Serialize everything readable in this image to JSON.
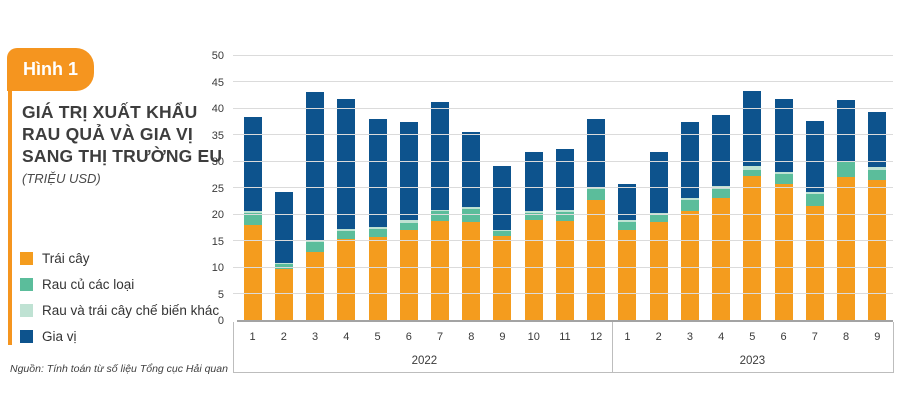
{
  "figure": {
    "label": "Hình 1",
    "title_lines": [
      "GIÁ TRỊ XUẤT KHẨU",
      "RAU QUẢ VÀ GIA VỊ",
      "SANG THỊ TRƯỜNG EU"
    ],
    "unit": "(TRIỆU USD)",
    "source": "Nguồn: Tính toán từ số liệu Tổng cục Hải quan"
  },
  "colors": {
    "accent_orange": "#F5951F",
    "series_fruit": "#F49C1E",
    "series_vegetables": "#5BBD9B",
    "series_processed": "#BFE2D3",
    "series_spices": "#0D538D",
    "gridline": "#DBDBDB",
    "axis_line": "#A3A3A3"
  },
  "chart_data": {
    "type": "bar",
    "stacked": true,
    "title": "GIÁ TRỊ XUẤT KHẨU RAU QUẢ VÀ GIA VỊ SANG THỊ TRƯỜNG EU (TRIỆU USD)",
    "ylim": [
      0,
      50
    ],
    "yticks": [
      0,
      5,
      10,
      15,
      20,
      25,
      30,
      35,
      40,
      45,
      50
    ],
    "grid": "horizontal",
    "legend_position": "left",
    "x_groups": [
      {
        "label": "2022",
        "categories": [
          "1",
          "2",
          "3",
          "4",
          "5",
          "6",
          "7",
          "8",
          "9",
          "10",
          "11",
          "12"
        ]
      },
      {
        "label": "2023",
        "categories": [
          "1",
          "2",
          "3",
          "4",
          "5",
          "6",
          "7",
          "8",
          "9"
        ]
      }
    ],
    "series": [
      {
        "name": "Trái cây",
        "color": "#F49C1E",
        "values": [
          17.9,
          9.6,
          12.8,
          15.2,
          15.7,
          16.9,
          18.6,
          18.4,
          15.8,
          18.8,
          18.7,
          22.7,
          16.9,
          18.5,
          20.5,
          23.0,
          27.1,
          25.6,
          21.6,
          26.9,
          26.4
        ]
      },
      {
        "name": "Rau củ các loại",
        "color": "#5BBD9B",
        "values": [
          2.3,
          1.0,
          2.0,
          1.6,
          1.5,
          1.5,
          1.9,
          2.6,
          1.0,
          1.4,
          1.7,
          2.0,
          1.6,
          1.4,
          2.2,
          1.8,
          1.3,
          1.9,
          2.2,
          2.9,
          2.0
        ]
      },
      {
        "name": "Rau và trái cây chế biến khác",
        "color": "#BFE2D3",
        "values": [
          0.3,
          0.2,
          0.2,
          0.3,
          0.3,
          0.4,
          0.3,
          0.3,
          0.2,
          0.3,
          0.3,
          0.3,
          0.3,
          0.3,
          0.3,
          0.4,
          0.7,
          0.5,
          0.4,
          0.3,
          0.4
        ]
      },
      {
        "name": "Gia vị",
        "color": "#0D538D",
        "values": [
          17.9,
          13.4,
          28.0,
          24.7,
          20.5,
          18.6,
          20.3,
          14.2,
          12.1,
          11.3,
          11.6,
          12.9,
          6.8,
          11.6,
          14.3,
          13.4,
          14.1,
          13.8,
          13.3,
          11.5,
          10.4
        ]
      }
    ]
  }
}
